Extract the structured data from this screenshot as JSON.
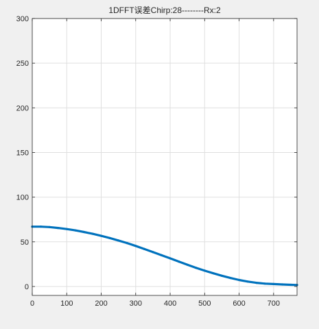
{
  "chart_data": {
    "type": "line",
    "title": "1DFFT误差Chirp:28--------Rx:2",
    "xlabel": "",
    "ylabel": "",
    "xlim": [
      0,
      768
    ],
    "ylim": [
      -10,
      300
    ],
    "x_ticks": [
      0,
      100,
      200,
      300,
      400,
      500,
      600,
      700
    ],
    "y_ticks": [
      0,
      50,
      100,
      150,
      200,
      250,
      300
    ],
    "grid": true,
    "series_color": "#0072bd",
    "series": [
      {
        "x": [
          0,
          25,
          50,
          75,
          100,
          125,
          150,
          175,
          200,
          225,
          250,
          275,
          300,
          325,
          350,
          375,
          400,
          425,
          450,
          475,
          500,
          525,
          550,
          575,
          600,
          625,
          650,
          675,
          700,
          725,
          750,
          768
        ],
        "y": [
          67,
          67,
          66.5,
          65.5,
          64.3,
          62.8,
          61,
          59,
          56.7,
          54.2,
          51.5,
          48.6,
          45.4,
          42,
          38.5,
          35,
          31.5,
          27.9,
          24.3,
          20.9,
          17.7,
          14.8,
          12,
          9.5,
          7.3,
          5.5,
          4.1,
          3.2,
          2.7,
          2.3,
          1.9,
          1.7
        ]
      }
    ]
  }
}
